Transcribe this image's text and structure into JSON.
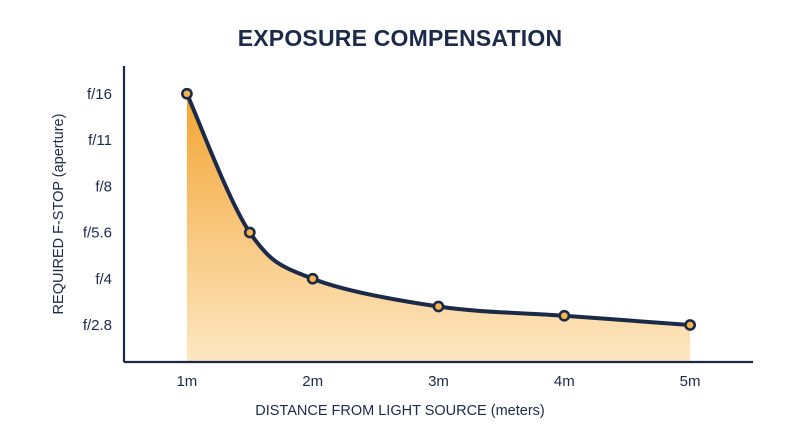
{
  "chart_data": {
    "type": "area",
    "title": "EXPOSURE COMPENSATION",
    "xlabel": "DISTANCE FROM LIGHT SOURCE (meters)",
    "ylabel": "REQUIRED F-STOP (aperture)",
    "x_ticks": [
      {
        "label": "1m",
        "value": 1
      },
      {
        "label": "2m",
        "value": 2
      },
      {
        "label": "3m",
        "value": 3
      },
      {
        "label": "4m",
        "value": 4
      },
      {
        "label": "5m",
        "value": 5
      }
    ],
    "y_ticks": [
      "f/2.8",
      "f/4",
      "f/5.6",
      "f/8",
      "f/11",
      "f/16"
    ],
    "xlim": [
      0.5,
      5.5
    ],
    "ylim_stops": [
      -0.8,
      5.6
    ],
    "points": [
      {
        "x": 1,
        "y_stop": 5.0
      },
      {
        "x": 1.5,
        "y_stop": 2.0
      },
      {
        "x": 2,
        "y_stop": 1.0
      },
      {
        "x": 3,
        "y_stop": 0.4
      },
      {
        "x": 4,
        "y_stop": 0.2
      },
      {
        "x": 5,
        "y_stop": 0.0
      }
    ],
    "grid": false,
    "colors": {
      "line": "#1c2a4a",
      "marker_fill": "#f5b54a",
      "area_top": "#f3a533",
      "area_bottom": "#fde7c3",
      "text": "#1c2a4a"
    }
  }
}
